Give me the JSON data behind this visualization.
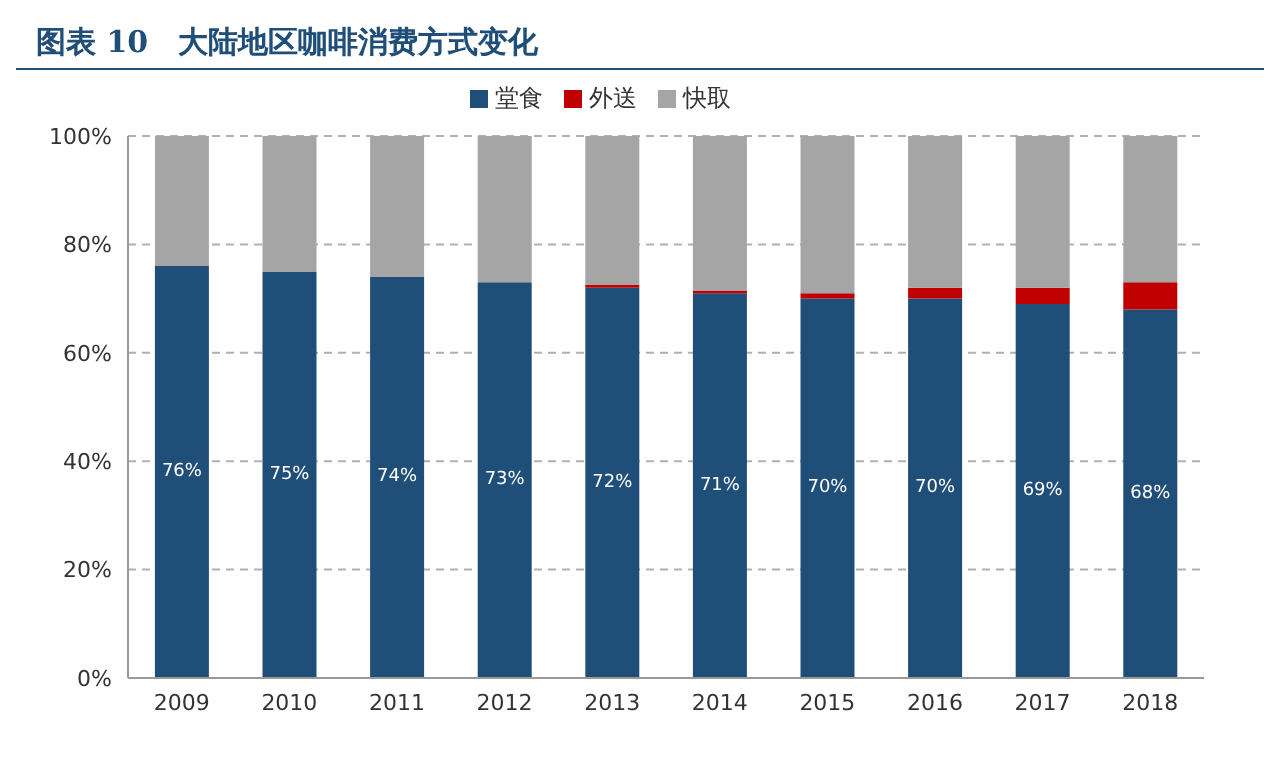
{
  "chart_data": {
    "type": "bar",
    "title": "图表 10　大陆地区咖啡消费方式变化",
    "categories": [
      "2009",
      "2010",
      "2011",
      "2012",
      "2013",
      "2014",
      "2015",
      "2016",
      "2017",
      "2018"
    ],
    "stacked": true,
    "series": [
      {
        "name": "堂食",
        "color": "#1f4e79",
        "values": [
          76,
          75,
          74,
          73,
          72,
          71,
          70,
          70,
          69,
          68
        ],
        "value_labels": [
          "76%",
          "75%",
          "74%",
          "73%",
          "72%",
          "71%",
          "70%",
          "70%",
          "69%",
          "68%"
        ]
      },
      {
        "name": "外送",
        "color": "#c00000",
        "values": [
          0,
          0,
          0,
          0,
          0.5,
          0.5,
          1,
          2,
          3,
          5
        ]
      },
      {
        "name": "快取",
        "color": "#a5a5a5",
        "values": [
          24,
          25,
          26,
          27,
          27.5,
          28.5,
          29,
          28,
          28,
          27
        ]
      }
    ],
    "ylim": [
      0,
      100
    ],
    "yticks": [
      {
        "value": 0,
        "label": "0%"
      },
      {
        "value": 20,
        "label": "20%"
      },
      {
        "value": 40,
        "label": "40%"
      },
      {
        "value": 60,
        "label": "60%"
      },
      {
        "value": 80,
        "label": "80%"
      },
      {
        "value": 100,
        "label": "100%"
      }
    ],
    "grid": "y",
    "legend": "top"
  }
}
